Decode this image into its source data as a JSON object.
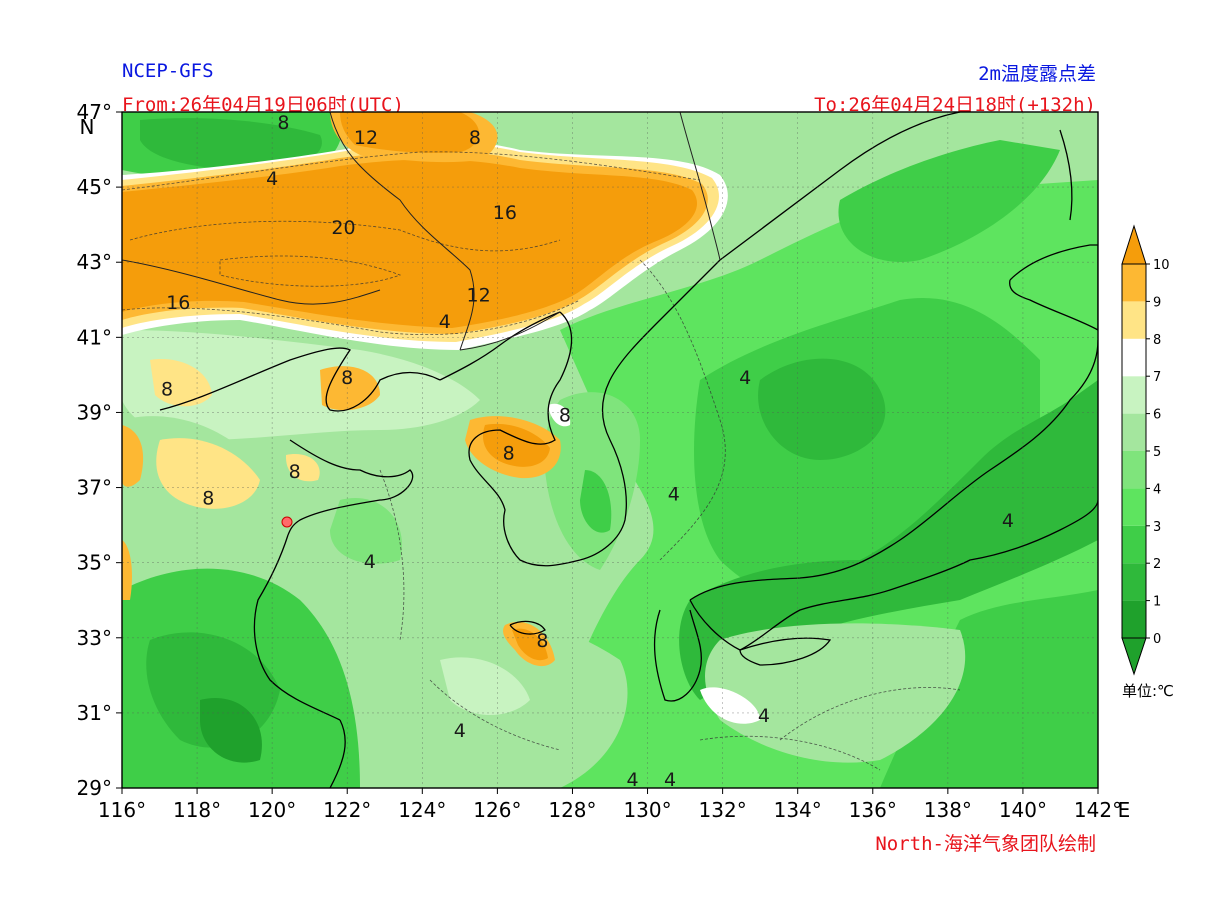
{
  "header": {
    "model": "NCEP-GFS",
    "variable": "2m温度露点差",
    "from": "From:26年04月19日06时(UTC)",
    "to": "To:26年04月24日18时(+132h)"
  },
  "footer": {
    "credit": "North-海洋气象团队绘制"
  },
  "map": {
    "lon_range": [
      116,
      142
    ],
    "lat_range": [
      29,
      47
    ],
    "lon_ticks": [
      "116°",
      "118°",
      "120°",
      "122°",
      "124°",
      "126°",
      "128°",
      "130°",
      "132°",
      "134°",
      "136°",
      "138°",
      "140°",
      "142°"
    ],
    "lat_ticks": [
      "29°",
      "31°",
      "33°",
      "35°",
      "37°",
      "39°",
      "41°",
      "43°",
      "45°",
      "47°"
    ],
    "lon_axis_letter": "E",
    "lat_axis_letter": "N",
    "contour_labels": [
      {
        "text": "8",
        "lon": 120.3,
        "lat": 46.7
      },
      {
        "text": "12",
        "lon": 122.5,
        "lat": 46.3
      },
      {
        "text": "8",
        "lon": 125.4,
        "lat": 46.3
      },
      {
        "text": "4",
        "lon": 120.0,
        "lat": 45.2
      },
      {
        "text": "20",
        "lon": 121.9,
        "lat": 43.9
      },
      {
        "text": "16",
        "lon": 126.2,
        "lat": 44.3
      },
      {
        "text": "16",
        "lon": 117.5,
        "lat": 41.9
      },
      {
        "text": "12",
        "lon": 125.5,
        "lat": 42.1
      },
      {
        "text": "4",
        "lon": 124.6,
        "lat": 41.4
      },
      {
        "text": "8",
        "lon": 122.0,
        "lat": 39.9
      },
      {
        "text": "4",
        "lon": 132.6,
        "lat": 39.9
      },
      {
        "text": "8",
        "lon": 117.2,
        "lat": 39.6
      },
      {
        "text": "8",
        "lon": 127.8,
        "lat": 38.9
      },
      {
        "text": "8",
        "lon": 126.3,
        "lat": 37.9
      },
      {
        "text": "8",
        "lon": 120.6,
        "lat": 37.4
      },
      {
        "text": "8",
        "lon": 118.3,
        "lat": 36.7
      },
      {
        "text": "4",
        "lon": 130.7,
        "lat": 36.8
      },
      {
        "text": "4",
        "lon": 139.6,
        "lat": 36.1
      },
      {
        "text": "4",
        "lon": 122.6,
        "lat": 35.0
      },
      {
        "text": "8",
        "lon": 127.2,
        "lat": 32.9
      },
      {
        "text": "4",
        "lon": 125.0,
        "lat": 30.5
      },
      {
        "text": "4",
        "lon": 133.1,
        "lat": 30.9
      },
      {
        "text": "4",
        "lon": 129.6,
        "lat": 29.2
      },
      {
        "text": "4",
        "lon": 130.6,
        "lat": 29.2
      }
    ]
  },
  "colorbar": {
    "ticks": [
      "0",
      "1",
      "2",
      "3",
      "4",
      "5",
      "6",
      "7",
      "8",
      "9",
      "10"
    ],
    "colors": [
      "#1fa12c",
      "#2fb93b",
      "#3fce48",
      "#5ee45f",
      "#7fe47c",
      "#a4e69e",
      "#c8f3c1",
      "#ffffff",
      "#ffe486",
      "#fdb833",
      "#f59d0b"
    ],
    "unit_label": "单位:℃"
  }
}
